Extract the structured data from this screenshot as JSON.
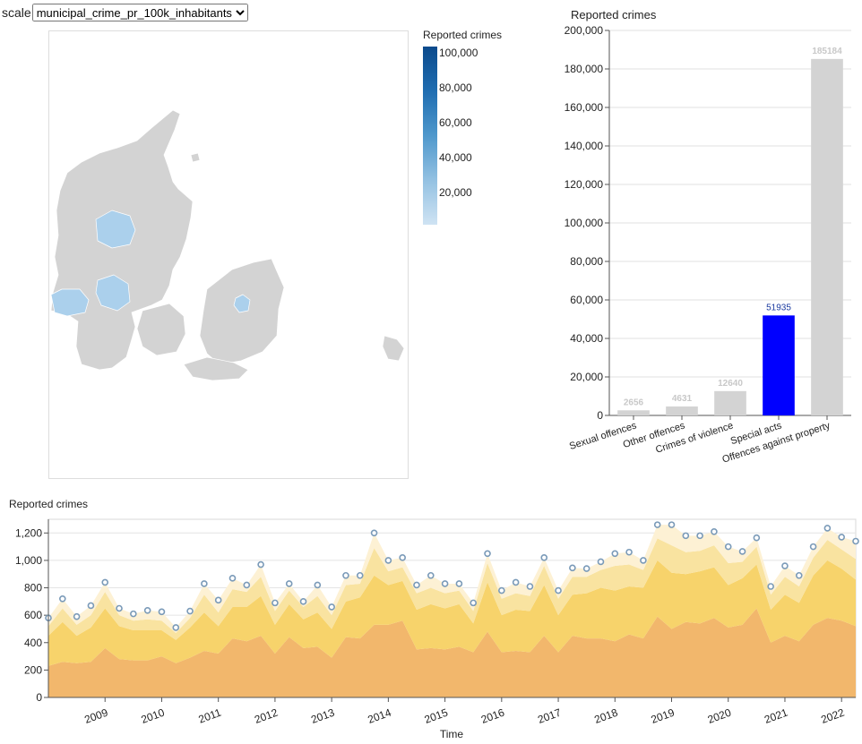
{
  "controls": {
    "scale_label": "scale",
    "scale_value": "municipal_crime_pr_100k_inhabitants"
  },
  "map": {
    "legend_title": "Reported crimes",
    "legend_ticks": [
      "100,000",
      "80,000",
      "60,000",
      "40,000",
      "20,000"
    ],
    "colors": {
      "default": "#d3d3d3",
      "highlight": "#abd0ec",
      "legend_top": "#0b4a8c",
      "legend_bottom": "#cfe3f3"
    }
  },
  "bar_chart": {
    "title": "Reported crimes",
    "y_ticks": [
      "0",
      "20,000",
      "40,000",
      "60,000",
      "80,000",
      "100,000",
      "120,000",
      "140,000",
      "160,000",
      "180,000",
      "200,000"
    ],
    "colors": {
      "default": "#d3d3d3",
      "selected": "#0000ff",
      "label_default": "#c8c8c8",
      "label_selected": "#1a3aa0"
    }
  },
  "line_chart": {
    "title": "Reported crimes",
    "x_axis_label": "Time",
    "y_ticks": [
      "0",
      "200",
      "400",
      "600",
      "800",
      "1,000",
      "1,200"
    ],
    "year_ticks": [
      "2009",
      "2010",
      "2011",
      "2012",
      "2013",
      "2014",
      "2015",
      "2016",
      "2017",
      "2018",
      "2019",
      "2020",
      "2021",
      "2022"
    ],
    "colors": {
      "layer1": "#f2b76c",
      "layer2": "#f7d36b",
      "layer3": "#f9e3a0",
      "layer4": "#fdf1d4",
      "points": "#7a9ab8"
    }
  },
  "chart_data": [
    {
      "type": "bar",
      "title": "Reported crimes",
      "categories": [
        "Sexual offences",
        "Other offences",
        "Crimes of violence",
        "Special acts",
        "Offences against property"
      ],
      "values": [
        2656,
        4631,
        12640,
        51935,
        185184
      ],
      "selected": "Special acts",
      "ylim": [
        0,
        200000
      ],
      "grid": true
    },
    {
      "type": "area",
      "title": "Reported crimes",
      "xlabel": "Time",
      "ylim": [
        0,
        1300
      ],
      "x_range": [
        "2008-01",
        "2022-04"
      ],
      "stacked": true,
      "totals": [
        580,
        720,
        590,
        670,
        840,
        650,
        610,
        635,
        625,
        510,
        630,
        830,
        710,
        870,
        820,
        970,
        690,
        830,
        700,
        820,
        660,
        890,
        890,
        1200,
        1000,
        1020,
        820,
        890,
        830,
        830,
        690,
        1050,
        780,
        840,
        810,
        1020,
        780,
        945,
        940,
        990,
        1050,
        1060,
        1000,
        1260,
        1260,
        1180,
        1180,
        1210,
        1100,
        1065,
        1165,
        810,
        960,
        890,
        1100,
        1235,
        1170,
        1140
      ],
      "series": [
        {
          "values": [
            230,
            260,
            250,
            260,
            360,
            280,
            270,
            270,
            300,
            250,
            290,
            340,
            320,
            430,
            410,
            450,
            320,
            440,
            360,
            370,
            290,
            440,
            430,
            530,
            530,
            560,
            350,
            360,
            350,
            370,
            330,
            480,
            330,
            340,
            330,
            450,
            330,
            450,
            430,
            430,
            410,
            460,
            430,
            590,
            500,
            550,
            540,
            580,
            510,
            530,
            650,
            400,
            450,
            410,
            530,
            580,
            560,
            520
          ]
        },
        {
          "values": [
            220,
            290,
            200,
            250,
            290,
            240,
            220,
            220,
            190,
            170,
            220,
            280,
            200,
            230,
            250,
            290,
            210,
            240,
            210,
            250,
            210,
            260,
            300,
            360,
            290,
            290,
            290,
            320,
            300,
            310,
            210,
            360,
            270,
            300,
            300,
            370,
            270,
            300,
            330,
            370,
            370,
            350,
            370,
            410,
            410,
            350,
            380,
            370,
            310,
            340,
            320,
            240,
            300,
            280,
            360,
            420,
            380,
            340
          ]
        },
        {
          "values": [
            70,
            100,
            80,
            90,
            120,
            80,
            70,
            80,
            70,
            50,
            70,
            130,
            100,
            130,
            110,
            140,
            100,
            100,
            90,
            120,
            100,
            120,
            100,
            200,
            100,
            100,
            120,
            120,
            110,
            100,
            90,
            140,
            120,
            120,
            110,
            140,
            120,
            130,
            120,
            130,
            180,
            160,
            130,
            160,
            200,
            160,
            150,
            160,
            160,
            120,
            130,
            110,
            130,
            120,
            130,
            150,
            140,
            150
          ]
        },
        {
          "values": [
            60,
            70,
            60,
            70,
            70,
            50,
            50,
            65,
            65,
            40,
            50,
            80,
            90,
            80,
            50,
            90,
            60,
            50,
            40,
            80,
            60,
            70,
            60,
            110,
            80,
            70,
            60,
            90,
            70,
            50,
            60,
            70,
            60,
            80,
            70,
            60,
            60,
            65,
            60,
            60,
            90,
            90,
            70,
            100,
            150,
            120,
            110,
            100,
            120,
            75,
            65,
            60,
            80,
            80,
            80,
            85,
            90,
            130
          ]
        }
      ]
    }
  ]
}
